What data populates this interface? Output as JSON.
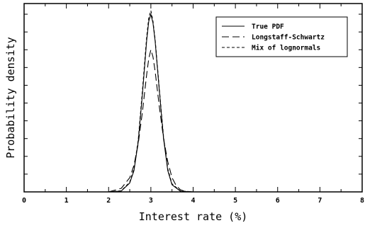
{
  "chart_data": {
    "type": "line",
    "title": "",
    "xlabel": "Interest rate (%)",
    "ylabel": "Probability density",
    "xlim": [
      0,
      8
    ],
    "ylim": [
      0,
      1.06
    ],
    "grid": false,
    "legend_position": "top-right",
    "xticks": [
      {
        "value": 0,
        "label": "0"
      },
      {
        "value": 1,
        "label": "1"
      },
      {
        "value": 2,
        "label": "2"
      },
      {
        "value": 3,
        "label": "3"
      },
      {
        "value": 4,
        "label": "4"
      },
      {
        "value": 5,
        "label": "5"
      },
      {
        "value": 6,
        "label": "6"
      },
      {
        "value": 7,
        "label": "7"
      },
      {
        "value": 8,
        "label": "8"
      }
    ],
    "series": [
      {
        "name": "True PDF",
        "style": "solid",
        "color": "#000000",
        "x": [
          0,
          2.0,
          2.3,
          2.5,
          2.6,
          2.7,
          2.8,
          2.9,
          2.95,
          3.0,
          3.05,
          3.1,
          3.2,
          3.3,
          3.4,
          3.5,
          3.7,
          4.0,
          8.0
        ],
        "y": [
          0,
          0,
          0.005,
          0.05,
          0.12,
          0.28,
          0.55,
          0.85,
          0.96,
          1.0,
          0.95,
          0.85,
          0.57,
          0.3,
          0.12,
          0.04,
          0.004,
          0,
          0
        ]
      },
      {
        "name": "Longstaff-Schwartz",
        "style": "dashed",
        "color": "#000000",
        "x": [
          0,
          2.0,
          2.3,
          2.5,
          2.6,
          2.7,
          2.8,
          2.9,
          2.95,
          3.0,
          3.05,
          3.1,
          3.2,
          3.3,
          3.4,
          3.5,
          3.6,
          3.7,
          3.8,
          4.0,
          8.0
        ],
        "y": [
          0,
          0,
          0.02,
          0.08,
          0.15,
          0.27,
          0.45,
          0.66,
          0.75,
          0.8,
          0.76,
          0.68,
          0.48,
          0.3,
          0.17,
          0.08,
          0.035,
          0.012,
          0.004,
          0,
          0
        ]
      },
      {
        "name": "Mix of lognormals",
        "style": "short-dashed",
        "color": "#000000",
        "x": [
          0,
          2.0,
          2.3,
          2.5,
          2.6,
          2.7,
          2.8,
          2.9,
          2.95,
          3.0,
          3.05,
          3.1,
          3.2,
          3.3,
          3.4,
          3.5,
          3.7,
          4.0,
          8.0
        ],
        "y": [
          0,
          0,
          0.006,
          0.055,
          0.13,
          0.29,
          0.57,
          0.87,
          0.98,
          1.02,
          0.96,
          0.86,
          0.58,
          0.31,
          0.13,
          0.045,
          0.005,
          0,
          0
        ]
      }
    ]
  }
}
